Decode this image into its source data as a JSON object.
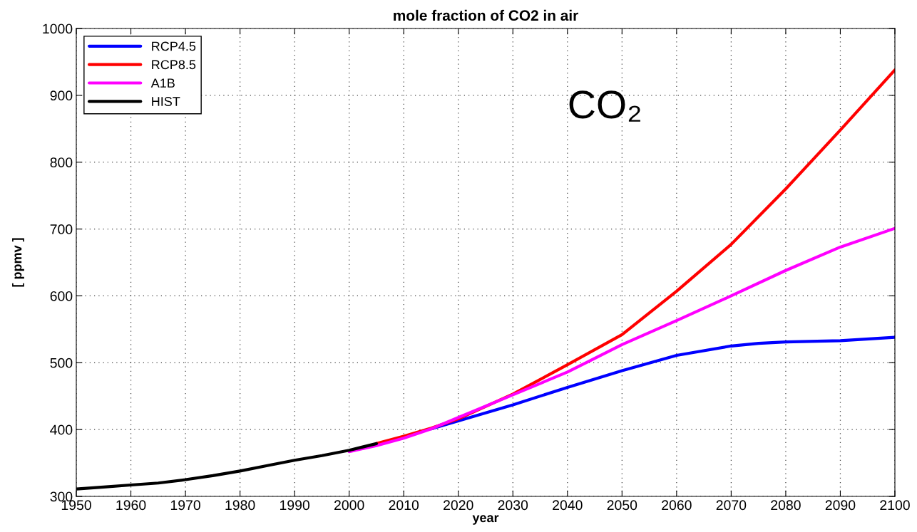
{
  "chart_data": {
    "type": "line",
    "title": "mole fraction of CO2 in air",
    "xlabel": "year",
    "ylabel": "[ ppmv ]",
    "annotations": [
      "CO₂"
    ],
    "xlim": [
      1950,
      2100
    ],
    "xticks": [
      1950,
      1960,
      1970,
      1980,
      1990,
      2000,
      2010,
      2020,
      2030,
      2040,
      2050,
      2060,
      2070,
      2080,
      2090,
      2100
    ],
    "ylim": [
      300,
      1000
    ],
    "yticks": [
      300,
      400,
      500,
      600,
      700,
      800,
      900,
      1000
    ],
    "grid": true,
    "legend": "top left",
    "line_style": "solid",
    "marker": "none",
    "series": [
      {
        "name": "RCP4.5",
        "color": "#0000ff",
        "x": [
          2015,
          2020,
          2030,
          2040,
          2050,
          2060,
          2070,
          2075,
          2080,
          2090,
          2100
        ],
        "values": [
          401,
          413,
          437,
          463,
          488,
          511,
          525,
          529,
          531,
          533,
          538
        ]
      },
      {
        "name": "RCP8.5",
        "color": "#ff0000",
        "x": [
          2005,
          2010,
          2015,
          2020,
          2030,
          2040,
          2050,
          2060,
          2070,
          2080,
          2090,
          2100
        ],
        "values": [
          379,
          390,
          402,
          416,
          453,
          497,
          542,
          607,
          677,
          760,
          848,
          938
        ]
      },
      {
        "name": "A1B",
        "color": "#ff00ff",
        "x": [
          2000,
          2005,
          2010,
          2015,
          2020,
          2030,
          2040,
          2050,
          2060,
          2070,
          2080,
          2090,
          2100
        ],
        "values": [
          367,
          376,
          387,
          401,
          418,
          452,
          486,
          527,
          563,
          600,
          638,
          673,
          701
        ]
      },
      {
        "name": "HIST",
        "color": "#000000",
        "x": [
          1950,
          1955,
          1960,
          1965,
          1970,
          1975,
          1980,
          1985,
          1990,
          1995,
          2000,
          2005
        ],
        "values": [
          311,
          314,
          317,
          320,
          325,
          331,
          338,
          346,
          354,
          361,
          369,
          379
        ]
      }
    ]
  }
}
